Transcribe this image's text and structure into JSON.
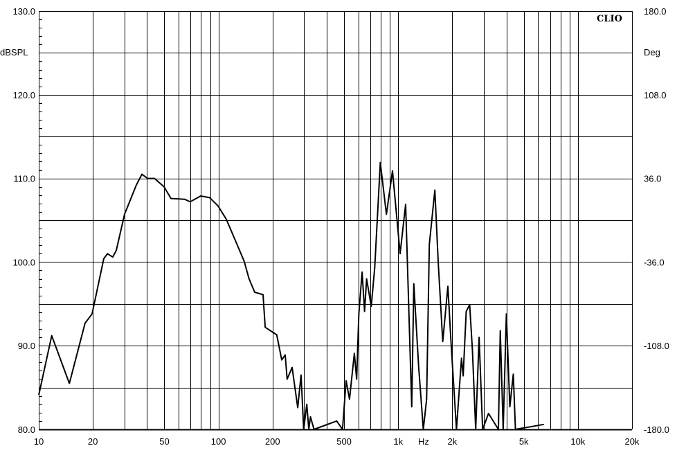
{
  "chart_data": {
    "type": "line",
    "logo": "CLIO",
    "xlabel": "Hz",
    "ylabel_left": "dBSPL",
    "ylabel_right": "Deg",
    "x_scale": "log",
    "xlim": [
      10,
      20000
    ],
    "ylim": [
      80,
      130
    ],
    "ylim_right": [
      -180,
      180
    ],
    "grid": true,
    "x_ticks": [
      {
        "value": 10,
        "label": "10"
      },
      {
        "value": 20,
        "label": "20"
      },
      {
        "value": 50,
        "label": "50"
      },
      {
        "value": 100,
        "label": "100"
      },
      {
        "value": 200,
        "label": "200"
      },
      {
        "value": 500,
        "label": "500"
      },
      {
        "value": 1000,
        "label": "1k"
      },
      {
        "value": 2000,
        "label": "2k"
      },
      {
        "value": 5000,
        "label": "5k"
      },
      {
        "value": 10000,
        "label": "10k"
      },
      {
        "value": 20000,
        "label": "20k"
      }
    ],
    "y_ticks_left": [
      "80.0",
      "90.0",
      "100.0",
      "110.0",
      "120.0",
      "130.0"
    ],
    "y_ticks_right": [
      "-180.0",
      "-108.0",
      "-36.0",
      "36.0",
      "108.0",
      "180.0"
    ],
    "line_color": "#000000",
    "series": [
      {
        "x": [
          10,
          11.8,
          14.8,
          18.1,
          19.8,
          23.0,
          24.1,
          25.8,
          27.0,
          30.0,
          34.9,
          37.5,
          40.3,
          44.0,
          49.8,
          54.4,
          64.9,
          69.6,
          79.6,
          89.3,
          99.5,
          110.6,
          124,
          139,
          148,
          159,
          177,
          182,
          211,
          225,
          235,
          241,
          257,
          276,
          288,
          298,
          310,
          318,
          325,
          340,
          455,
          490,
          513,
          536,
          570,
          587,
          604,
          630,
          650,
          667,
          708,
          740,
          795,
          860,
          930,
          1025,
          1100,
          1190,
          1222,
          1300,
          1380,
          1440,
          1490,
          1600,
          1670,
          1770,
          1890,
          1970,
          2110,
          2250,
          2300,
          2390,
          2500,
          2590,
          2700,
          2820,
          2950,
          3180,
          3610,
          3700,
          3840,
          4000,
          4180,
          4370,
          4490,
          6470
        ],
        "y": [
          84.1,
          91.2,
          85.5,
          92.7,
          93.8,
          100.4,
          101.0,
          100.6,
          101.4,
          105.7,
          109.2,
          110.5,
          110.0,
          110.0,
          109.0,
          107.6,
          107.5,
          107.2,
          107.9,
          107.7,
          106.7,
          105.1,
          102.6,
          100.1,
          98.0,
          96.4,
          96.1,
          92.2,
          91.3,
          88.3,
          88.9,
          86.0,
          87.4,
          82.6,
          86.5,
          80,
          83.0,
          80,
          81.5,
          80,
          81,
          80,
          85.8,
          83.6,
          89.1,
          86.0,
          93.8,
          98.8,
          94.1,
          98.0,
          94.7,
          99.3,
          111.9,
          105.7,
          110.9,
          101.0,
          106.9,
          82.7,
          97.4,
          87.5,
          80,
          83.6,
          102.1,
          108.6,
          99.9,
          90.5,
          97.1,
          90.2,
          80,
          88.5,
          86.4,
          94.1,
          94.9,
          89.4,
          80,
          91.0,
          80,
          81.9,
          80,
          91.8,
          80,
          93.8,
          82.7,
          86.6,
          80,
          80.6
        ]
      }
    ]
  }
}
